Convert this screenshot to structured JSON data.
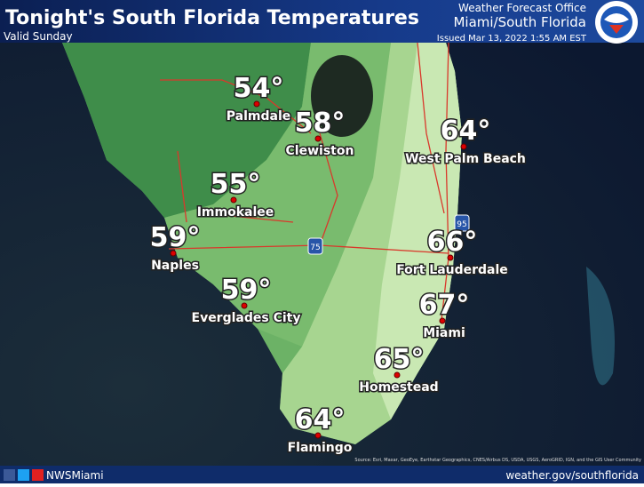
{
  "header": {
    "title": "Tonight's South Florida Temperatures",
    "subtitle": "Valid Sunday",
    "office_line1": "Weather Forecast Office",
    "office_line2": "Miami/South Florida",
    "issued": "Issued Mar 13, 2022 1:55 AM EST"
  },
  "cities": [
    {
      "temp": "54°",
      "name": "Palmdale"
    },
    {
      "temp": "58°",
      "name": "Clewiston"
    },
    {
      "temp": "64°",
      "name": "West Palm Beach"
    },
    {
      "temp": "55°",
      "name": "Immokalee"
    },
    {
      "temp": "59°",
      "name": "Naples"
    },
    {
      "temp": "66°",
      "name": "Fort Lauderdale"
    },
    {
      "temp": "59°",
      "name": "Everglades City"
    },
    {
      "temp": "67°",
      "name": "Miami"
    },
    {
      "temp": "65°",
      "name": "Homestead"
    },
    {
      "temp": "64°",
      "name": "Flamingo"
    }
  ],
  "highways": [
    "75",
    "95"
  ],
  "attribution": "Source: Esri, Maxar, GeoEye, Earthstar Geographics, CNES/Airbus DS, USDA, USGS, AeroGRID, IGN, and the GIS User Community",
  "footer": {
    "handle": "NWSMiami",
    "url": "weather.gov/southflorida"
  }
}
